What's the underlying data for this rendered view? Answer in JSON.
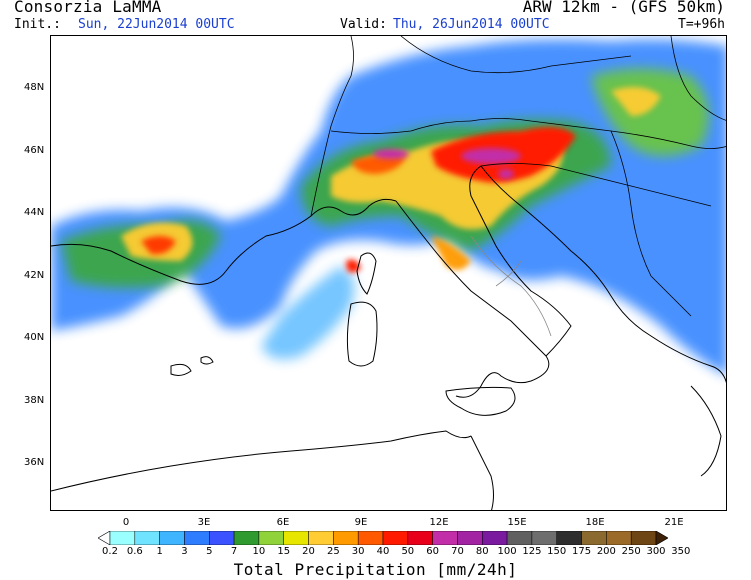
{
  "header": {
    "organization": "Consorzia LaMMA",
    "model": "ARW 12km - (GFS 50km)",
    "init_label": "Init.:",
    "init_value": "Sun, 22Jun2014 00UTC",
    "valid_label": "Valid:",
    "valid_value": "Thu, 26Jun2014 00UTC",
    "forecast_step": "T=+96h"
  },
  "map": {
    "lat_labels": [
      "48N",
      "46N",
      "44N",
      "42N",
      "40N",
      "38N",
      "36N"
    ],
    "lon_labels": [
      "0",
      "3E",
      "6E",
      "9E",
      "12E",
      "15E",
      "18E",
      "21E"
    ]
  },
  "colorbar": {
    "title": "Total Precipitation [mm/24h]",
    "labels": [
      "0.2",
      "0.6",
      "1",
      "3",
      "5",
      "7",
      "10",
      "15",
      "20",
      "25",
      "30",
      "40",
      "50",
      "60",
      "70",
      "80",
      "100",
      "125",
      "150",
      "175",
      "200",
      "250",
      "300",
      "350"
    ],
    "colors": [
      "#ffffff",
      "#9cffff",
      "#6fe3ff",
      "#3fb5ff",
      "#2f7dff",
      "#3a52ff",
      "#2f9a2f",
      "#8fd23a",
      "#e6e600",
      "#ffcc33",
      "#ff9a00",
      "#ff5a00",
      "#ff1a00",
      "#e8001a",
      "#c22ea8",
      "#a324a3",
      "#7a1a9e",
      "#606060",
      "#6e6e6e",
      "#2e2e2e",
      "#8b6a30",
      "#9b6a28",
      "#6e4515",
      "#3d2008"
    ]
  }
}
